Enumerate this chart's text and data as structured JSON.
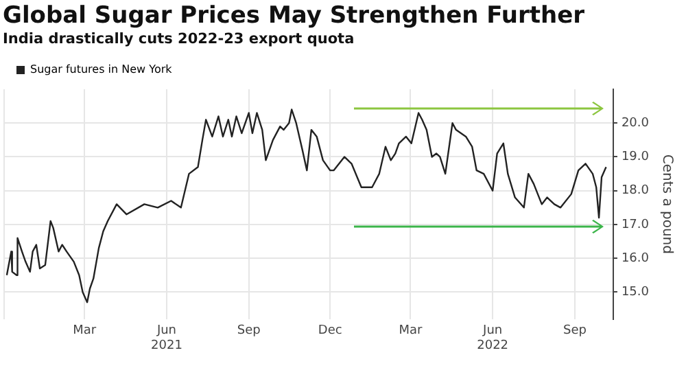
{
  "chart_data": {
    "type": "line",
    "title": "Global Sugar Prices May Strengthen Further",
    "subtitle": "India drastically cuts 2022-23 export quota",
    "ylabel": "Cents a pound",
    "legend": "top left",
    "grid": true,
    "marker": "none",
    "line_style": "solid",
    "xlim": [
      "2020-12-01",
      "2022-10-14"
    ],
    "xticks": [
      {
        "value": "2020-12-01",
        "label": null
      },
      {
        "value": "2021-03-01",
        "label": "Mar"
      },
      {
        "value": "2021-06-01",
        "label": "Jun\n2021"
      },
      {
        "value": "2021-09-01",
        "label": "Sep"
      },
      {
        "value": "2021-12-01",
        "label": "Dec"
      },
      {
        "value": "2022-03-01",
        "label": "Mar"
      },
      {
        "value": "2022-06-01",
        "label": "Jun\n2022"
      },
      {
        "value": "2022-09-01",
        "label": "Sep"
      }
    ],
    "ylim": [
      14.2,
      21.0
    ],
    "yticks": [
      {
        "value": 15,
        "label": "15.0"
      },
      {
        "value": 16,
        "label": "16.0"
      },
      {
        "value": 17,
        "label": "17.0"
      },
      {
        "value": 18,
        "label": "18.0"
      },
      {
        "value": 19,
        "label": "19.0"
      },
      {
        "value": 20,
        "label": "20.0"
      }
    ],
    "series": [
      {
        "name": "Sugar futures in New York",
        "color": "#222222",
        "x": [
          "2020-12-04",
          "2020-12-09",
          "2020-12-10",
          "2020-12-15",
          "2020-12-16",
          "2020-12-21",
          "2020-12-25",
          "2020-12-30",
          "2021-01-02",
          "2021-01-06",
          "2021-01-10",
          "2021-01-16",
          "2021-01-22",
          "2021-01-25",
          "2021-01-31",
          "2021-02-04",
          "2021-02-09",
          "2021-02-17",
          "2021-02-23",
          "2021-02-27",
          "2021-03-04",
          "2021-03-07",
          "2021-03-11",
          "2021-03-17",
          "2021-03-22",
          "2021-03-27",
          "2021-04-06",
          "2021-04-17",
          "2021-05-07",
          "2021-05-22",
          "2021-06-06",
          "2021-06-17",
          "2021-06-26",
          "2021-07-06",
          "2021-07-11",
          "2021-07-15",
          "2021-07-22",
          "2021-07-29",
          "2021-08-03",
          "2021-08-09",
          "2021-08-13",
          "2021-08-18",
          "2021-08-24",
          "2021-09-01",
          "2021-09-05",
          "2021-09-10",
          "2021-09-16",
          "2021-09-20",
          "2021-09-28",
          "2021-10-06",
          "2021-10-10",
          "2021-10-16",
          "2021-10-19",
          "2021-10-24",
          "2021-10-31",
          "2021-11-05",
          "2021-11-10",
          "2021-11-16",
          "2021-11-23",
          "2021-12-01",
          "2021-12-05",
          "2021-12-17",
          "2021-12-25",
          "2022-01-05",
          "2022-01-17",
          "2022-01-25",
          "2022-02-01",
          "2022-02-07",
          "2022-02-12",
          "2022-02-16",
          "2022-02-24",
          "2022-03-02",
          "2022-03-10",
          "2022-03-14",
          "2022-03-19",
          "2022-03-25",
          "2022-03-30",
          "2022-04-03",
          "2022-04-09",
          "2022-04-17",
          "2022-04-21",
          "2022-05-02",
          "2022-05-09",
          "2022-05-14",
          "2022-05-22",
          "2022-06-01",
          "2022-06-06",
          "2022-06-13",
          "2022-06-18",
          "2022-06-26",
          "2022-07-06",
          "2022-07-11",
          "2022-07-17",
          "2022-07-26",
          "2022-08-01",
          "2022-08-09",
          "2022-08-16",
          "2022-08-28",
          "2022-09-05",
          "2022-09-13",
          "2022-09-21",
          "2022-09-25",
          "2022-09-28",
          "2022-10-01",
          "2022-10-06"
        ],
        "values": [
          15.5,
          16.2,
          15.6,
          15.5,
          16.6,
          16.2,
          15.9,
          15.6,
          16.2,
          16.4,
          15.7,
          15.8,
          17.1,
          16.9,
          16.2,
          16.4,
          16.2,
          15.9,
          15.5,
          15.0,
          14.7,
          15.1,
          15.4,
          16.3,
          16.8,
          17.1,
          17.6,
          17.3,
          17.6,
          17.5,
          17.7,
          17.5,
          18.5,
          18.7,
          19.5,
          20.1,
          19.6,
          20.2,
          19.6,
          20.1,
          19.6,
          20.2,
          19.7,
          20.3,
          19.7,
          20.3,
          19.8,
          18.9,
          19.5,
          19.9,
          19.8,
          20.0,
          20.4,
          20.0,
          19.2,
          18.6,
          19.8,
          19.6,
          18.9,
          18.6,
          18.6,
          19.0,
          18.8,
          18.1,
          18.1,
          18.5,
          19.3,
          18.9,
          19.1,
          19.4,
          19.6,
          19.4,
          20.3,
          20.1,
          19.8,
          19.0,
          19.1,
          19.0,
          18.5,
          20.0,
          19.8,
          19.6,
          19.3,
          18.6,
          18.5,
          18.0,
          19.1,
          19.4,
          18.5,
          17.8,
          17.5,
          18.5,
          18.2,
          17.6,
          17.8,
          17.6,
          17.5,
          17.9,
          18.6,
          18.8,
          18.5,
          18.1,
          17.2,
          18.4,
          18.7
        ]
      }
    ]
  }
}
